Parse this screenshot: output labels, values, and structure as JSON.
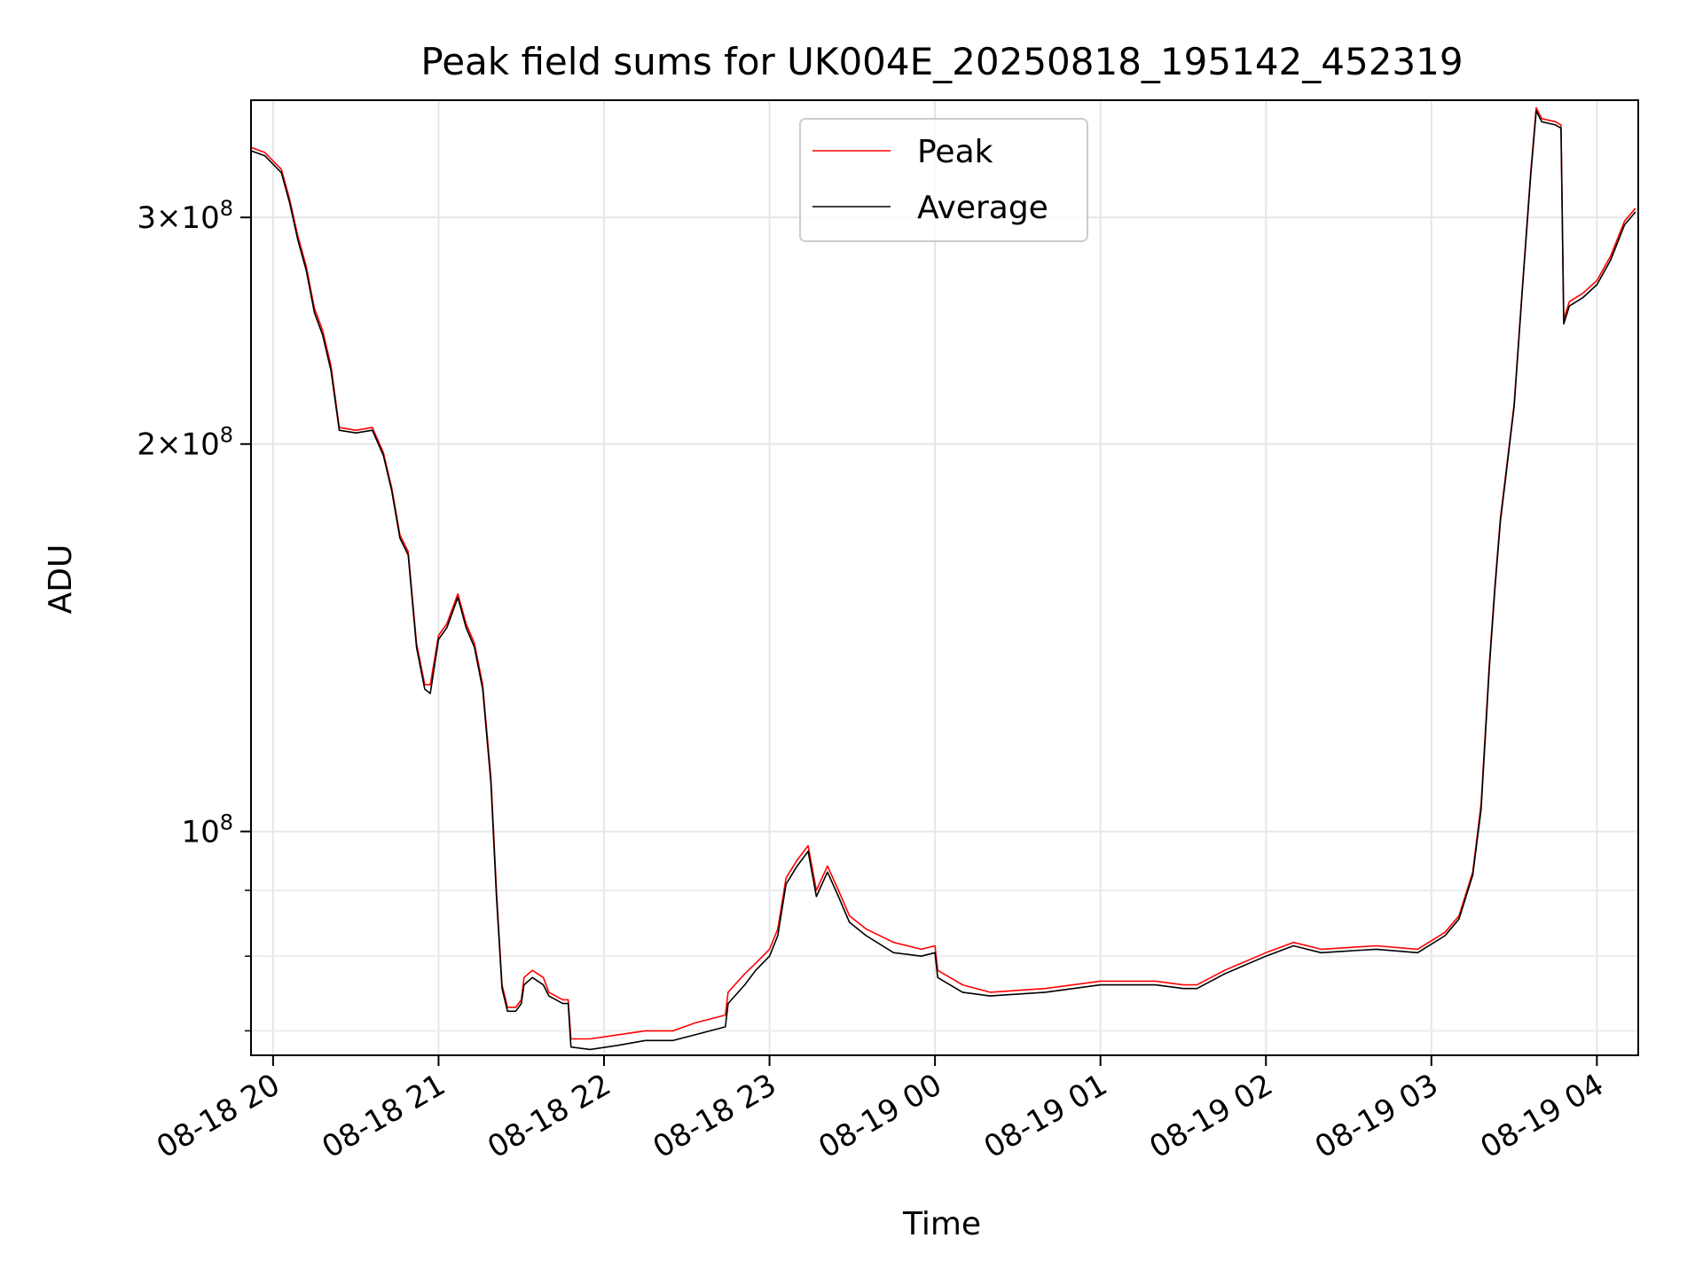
{
  "chart_data": {
    "type": "line",
    "title": "Peak field sums for UK004E_20250818_195142_452319",
    "xlabel": "Time",
    "ylabel": "ADU",
    "x_ticks": [
      "08-18 20",
      "08-18 21",
      "08-18 22",
      "08-18 23",
      "08-19 00",
      "08-19 01",
      "08-19 02",
      "08-19 03",
      "08-19 04"
    ],
    "x_tick_times": [
      "2025-08-18T20:00",
      "2025-08-18T21:00",
      "2025-08-18T22:00",
      "2025-08-18T23:00",
      "2025-08-19T00:00",
      "2025-08-19T01:00",
      "2025-08-19T02:00",
      "2025-08-19T03:00",
      "2025-08-19T04:00"
    ],
    "xlim": [
      "2025-08-18T19:52",
      "2025-08-19T04:15"
    ],
    "y_scale": "log",
    "ylim": [
      67000000,
      370000000
    ],
    "y_ticks_major": [
      {
        "value": 100000000,
        "base": "10",
        "exp": "8"
      },
      {
        "value": 200000000,
        "base": "2×10",
        "exp": "8"
      },
      {
        "value": 300000000,
        "base": "3×10",
        "exp": "8"
      }
    ],
    "y_ticks_minor": [
      70000000,
      80000000,
      90000000
    ],
    "grid": true,
    "legend_position": "top-center",
    "series": [
      {
        "name": "Peak",
        "color": "#ff0000",
        "points": [
          [
            "2025-08-18T19:52",
            340000000
          ],
          [
            "2025-08-18T19:57",
            337000000
          ],
          [
            "2025-08-18T20:03",
            327000000
          ],
          [
            "2025-08-18T20:06",
            310000000
          ],
          [
            "2025-08-18T20:09",
            290000000
          ],
          [
            "2025-08-18T20:12",
            275000000
          ],
          [
            "2025-08-18T20:15",
            255000000
          ],
          [
            "2025-08-18T20:18",
            245000000
          ],
          [
            "2025-08-18T20:21",
            230000000
          ],
          [
            "2025-08-18T20:24",
            206000000
          ],
          [
            "2025-08-18T20:30",
            205000000
          ],
          [
            "2025-08-18T20:36",
            206000000
          ],
          [
            "2025-08-18T20:40",
            197000000
          ],
          [
            "2025-08-18T20:43",
            185000000
          ],
          [
            "2025-08-18T20:46",
            170000000
          ],
          [
            "2025-08-18T20:49",
            165000000
          ],
          [
            "2025-08-18T20:52",
            140000000
          ],
          [
            "2025-08-18T20:55",
            130000000
          ],
          [
            "2025-08-18T20:57",
            130000000
          ],
          [
            "2025-08-18T21:00",
            142000000
          ],
          [
            "2025-08-18T21:03",
            145000000
          ],
          [
            "2025-08-18T21:07",
            153000000
          ],
          [
            "2025-08-18T21:10",
            145000000
          ],
          [
            "2025-08-18T21:13",
            140000000
          ],
          [
            "2025-08-18T21:16",
            130000000
          ],
          [
            "2025-08-18T21:19",
            110000000
          ],
          [
            "2025-08-18T21:21",
            90000000
          ],
          [
            "2025-08-18T21:23",
            76000000
          ],
          [
            "2025-08-18T21:25",
            73000000
          ],
          [
            "2025-08-18T21:28",
            73000000
          ],
          [
            "2025-08-18T21:30",
            74000000
          ],
          [
            "2025-08-18T21:31",
            77000000
          ],
          [
            "2025-08-18T21:34",
            78000000
          ],
          [
            "2025-08-18T21:38",
            77000000
          ],
          [
            "2025-08-18T21:40",
            75000000
          ],
          [
            "2025-08-18T21:45",
            74000000
          ],
          [
            "2025-08-18T21:47",
            74000000
          ],
          [
            "2025-08-18T21:48",
            69000000
          ],
          [
            "2025-08-18T21:55",
            69000000
          ],
          [
            "2025-08-18T22:05",
            69500000
          ],
          [
            "2025-08-18T22:15",
            70000000
          ],
          [
            "2025-08-18T22:25",
            70000000
          ],
          [
            "2025-08-18T22:33",
            71000000
          ],
          [
            "2025-08-18T22:44",
            72000000
          ],
          [
            "2025-08-18T22:45",
            75000000
          ],
          [
            "2025-08-18T22:51",
            77500000
          ],
          [
            "2025-08-18T22:55",
            79000000
          ],
          [
            "2025-08-18T23:00",
            81000000
          ],
          [
            "2025-08-18T23:03",
            84000000
          ],
          [
            "2025-08-18T23:06",
            92000000
          ],
          [
            "2025-08-18T23:10",
            95000000
          ],
          [
            "2025-08-18T23:14",
            97500000
          ],
          [
            "2025-08-18T23:17",
            90000000
          ],
          [
            "2025-08-18T23:21",
            94000000
          ],
          [
            "2025-08-18T23:25",
            90000000
          ],
          [
            "2025-08-18T23:29",
            86000000
          ],
          [
            "2025-08-18T23:35",
            84000000
          ],
          [
            "2025-08-18T23:45",
            82000000
          ],
          [
            "2025-08-18T23:55",
            81000000
          ],
          [
            "2025-08-19T00:00",
            81500000
          ],
          [
            "2025-08-19T00:01",
            78000000
          ],
          [
            "2025-08-19T00:10",
            76000000
          ],
          [
            "2025-08-19T00:20",
            75000000
          ],
          [
            "2025-08-19T00:40",
            75500000
          ],
          [
            "2025-08-19T01:00",
            76500000
          ],
          [
            "2025-08-19T01:20",
            76500000
          ],
          [
            "2025-08-19T01:30",
            76000000
          ],
          [
            "2025-08-19T01:35",
            76000000
          ],
          [
            "2025-08-19T01:45",
            78000000
          ],
          [
            "2025-08-19T02:00",
            80500000
          ],
          [
            "2025-08-19T02:10",
            82000000
          ],
          [
            "2025-08-19T02:20",
            81000000
          ],
          [
            "2025-08-19T02:40",
            81500000
          ],
          [
            "2025-08-19T02:55",
            81000000
          ],
          [
            "2025-08-19T03:05",
            83500000
          ],
          [
            "2025-08-19T03:10",
            86000000
          ],
          [
            "2025-08-19T03:15",
            93000000
          ],
          [
            "2025-08-19T03:18",
            105000000
          ],
          [
            "2025-08-19T03:21",
            135000000
          ],
          [
            "2025-08-19T03:23",
            155000000
          ],
          [
            "2025-08-19T03:25",
            175000000
          ],
          [
            "2025-08-19T03:27",
            190000000
          ],
          [
            "2025-08-19T03:30",
            215000000
          ],
          [
            "2025-08-19T03:33",
            265000000
          ],
          [
            "2025-08-19T03:36",
            325000000
          ],
          [
            "2025-08-19T03:38",
            365000000
          ],
          [
            "2025-08-19T03:40",
            358000000
          ],
          [
            "2025-08-19T03:45",
            356000000
          ],
          [
            "2025-08-19T03:47",
            354000000
          ],
          [
            "2025-08-19T03:48",
            250000000
          ],
          [
            "2025-08-19T03:50",
            258000000
          ],
          [
            "2025-08-19T03:55",
            262000000
          ],
          [
            "2025-08-19T04:00",
            268000000
          ],
          [
            "2025-08-19T04:05",
            280000000
          ],
          [
            "2025-08-19T04:10",
            298000000
          ],
          [
            "2025-08-19T04:14",
            305000000
          ]
        ]
      },
      {
        "name": "Average",
        "color": "#000000",
        "points": [
          [
            "2025-08-18T19:52",
            338000000
          ],
          [
            "2025-08-18T19:57",
            335000000
          ],
          [
            "2025-08-18T20:03",
            325000000
          ],
          [
            "2025-08-18T20:06",
            308000000
          ],
          [
            "2025-08-18T20:09",
            288000000
          ],
          [
            "2025-08-18T20:12",
            273000000
          ],
          [
            "2025-08-18T20:15",
            253000000
          ],
          [
            "2025-08-18T20:18",
            243000000
          ],
          [
            "2025-08-18T20:21",
            228000000
          ],
          [
            "2025-08-18T20:24",
            205000000
          ],
          [
            "2025-08-18T20:30",
            204000000
          ],
          [
            "2025-08-18T20:36",
            205000000
          ],
          [
            "2025-08-18T20:40",
            196000000
          ],
          [
            "2025-08-18T20:43",
            184000000
          ],
          [
            "2025-08-18T20:46",
            169000000
          ],
          [
            "2025-08-18T20:49",
            164000000
          ],
          [
            "2025-08-18T20:52",
            139000000
          ],
          [
            "2025-08-18T20:55",
            129000000
          ],
          [
            "2025-08-18T20:57",
            128000000
          ],
          [
            "2025-08-18T21:00",
            141000000
          ],
          [
            "2025-08-18T21:03",
            144000000
          ],
          [
            "2025-08-18T21:07",
            152000000
          ],
          [
            "2025-08-18T21:10",
            144000000
          ],
          [
            "2025-08-18T21:13",
            139000000
          ],
          [
            "2025-08-18T21:16",
            129000000
          ],
          [
            "2025-08-18T21:19",
            109000000
          ],
          [
            "2025-08-18T21:21",
            89000000
          ],
          [
            "2025-08-18T21:23",
            75500000
          ],
          [
            "2025-08-18T21:25",
            72500000
          ],
          [
            "2025-08-18T21:28",
            72500000
          ],
          [
            "2025-08-18T21:30",
            73500000
          ],
          [
            "2025-08-18T21:31",
            76000000
          ],
          [
            "2025-08-18T21:34",
            77000000
          ],
          [
            "2025-08-18T21:38",
            76000000
          ],
          [
            "2025-08-18T21:40",
            74500000
          ],
          [
            "2025-08-18T21:45",
            73500000
          ],
          [
            "2025-08-18T21:47",
            73500000
          ],
          [
            "2025-08-18T21:48",
            68000000
          ],
          [
            "2025-08-18T21:55",
            67700000
          ],
          [
            "2025-08-18T22:05",
            68200000
          ],
          [
            "2025-08-18T22:15",
            68800000
          ],
          [
            "2025-08-18T22:25",
            68800000
          ],
          [
            "2025-08-18T22:33",
            69500000
          ],
          [
            "2025-08-18T22:44",
            70500000
          ],
          [
            "2025-08-18T22:45",
            73500000
          ],
          [
            "2025-08-18T22:51",
            76000000
          ],
          [
            "2025-08-18T22:55",
            78000000
          ],
          [
            "2025-08-18T23:00",
            80000000
          ],
          [
            "2025-08-18T23:03",
            83000000
          ],
          [
            "2025-08-18T23:06",
            91000000
          ],
          [
            "2025-08-18T23:10",
            94000000
          ],
          [
            "2025-08-18T23:14",
            96500000
          ],
          [
            "2025-08-18T23:17",
            89000000
          ],
          [
            "2025-08-18T23:21",
            93000000
          ],
          [
            "2025-08-18T23:25",
            89000000
          ],
          [
            "2025-08-18T23:29",
            85000000
          ],
          [
            "2025-08-18T23:35",
            83000000
          ],
          [
            "2025-08-18T23:45",
            80500000
          ],
          [
            "2025-08-18T23:55",
            80000000
          ],
          [
            "2025-08-19T00:00",
            80500000
          ],
          [
            "2025-08-19T00:01",
            77000000
          ],
          [
            "2025-08-19T00:10",
            75000000
          ],
          [
            "2025-08-19T00:20",
            74500000
          ],
          [
            "2025-08-19T00:40",
            75000000
          ],
          [
            "2025-08-19T01:00",
            76000000
          ],
          [
            "2025-08-19T01:20",
            76000000
          ],
          [
            "2025-08-19T01:30",
            75500000
          ],
          [
            "2025-08-19T01:35",
            75500000
          ],
          [
            "2025-08-19T01:45",
            77500000
          ],
          [
            "2025-08-19T02:00",
            80000000
          ],
          [
            "2025-08-19T02:10",
            81500000
          ],
          [
            "2025-08-19T02:20",
            80500000
          ],
          [
            "2025-08-19T02:40",
            81000000
          ],
          [
            "2025-08-19T02:55",
            80500000
          ],
          [
            "2025-08-19T03:05",
            83000000
          ],
          [
            "2025-08-19T03:10",
            85500000
          ],
          [
            "2025-08-19T03:15",
            92500000
          ],
          [
            "2025-08-19T03:18",
            104000000
          ],
          [
            "2025-08-19T03:21",
            134000000
          ],
          [
            "2025-08-19T03:23",
            154000000
          ],
          [
            "2025-08-19T03:25",
            174000000
          ],
          [
            "2025-08-19T03:27",
            189000000
          ],
          [
            "2025-08-19T03:30",
            214000000
          ],
          [
            "2025-08-19T03:33",
            264000000
          ],
          [
            "2025-08-19T03:36",
            323000000
          ],
          [
            "2025-08-19T03:38",
            363000000
          ],
          [
            "2025-08-19T03:40",
            356000000
          ],
          [
            "2025-08-19T03:45",
            354000000
          ],
          [
            "2025-08-19T03:47",
            352000000
          ],
          [
            "2025-08-19T03:48",
            248000000
          ],
          [
            "2025-08-19T03:50",
            256000000
          ],
          [
            "2025-08-19T03:55",
            260000000
          ],
          [
            "2025-08-19T04:00",
            266000000
          ],
          [
            "2025-08-19T04:05",
            278000000
          ],
          [
            "2025-08-19T04:10",
            296000000
          ],
          [
            "2025-08-19T04:14",
            303000000
          ]
        ]
      }
    ]
  }
}
